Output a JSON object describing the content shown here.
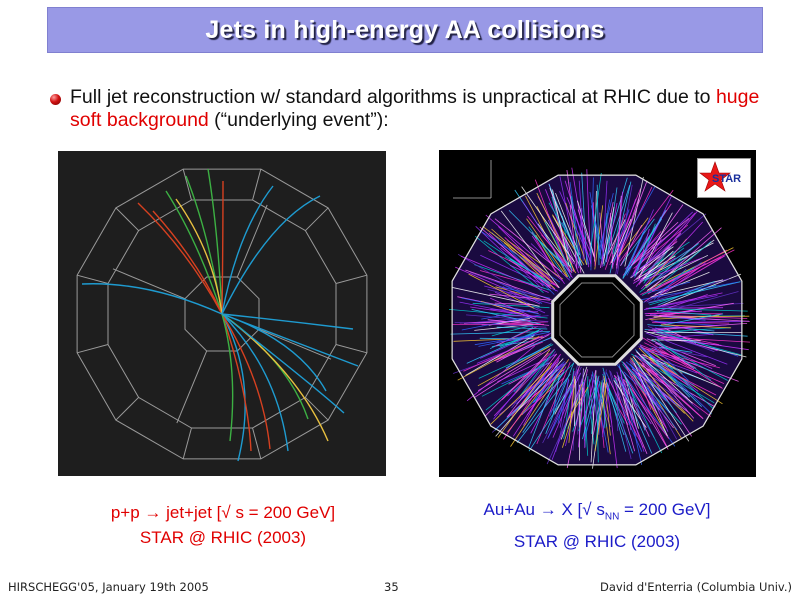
{
  "slide": {
    "title": "Jets in high-energy AA collisions",
    "bullet": {
      "part1": "Full jet reconstruction w/ standard algorithms is unpractical at RHIC due to ",
      "highlight": "huge soft background",
      "part2": " (“underlying event”):"
    },
    "left_caption": {
      "line1_a": "p+p ",
      "line1_arrow": "→",
      "line1_b": " jet+jet  [",
      "line1_sqrt": "√",
      "line1_c": " s = 200 GeV]",
      "line2": "STAR @ RHIC (2003)"
    },
    "right_caption": {
      "line1_a": "Au+Au ",
      "line1_arrow": "→",
      "line1_b": "  X [",
      "line1_sqrt": "√",
      "line1_c": " s",
      "line1_sub": "NN",
      "line1_d": " = 200 GeV]",
      "line2": "STAR @ RHIC (2003)"
    },
    "footer": {
      "left": "HIRSCHEGG'05, January 19th 2005",
      "page": "35",
      "right": "David d'Enterria (Columbia Univ.)"
    },
    "logo_text": "STAR"
  },
  "colors": {
    "title_bar": "#9999e6",
    "highlight": "#e00000",
    "caption_blue": "#1c1cc8",
    "track_blue": "#1e9bd0",
    "track_red": "#d64020",
    "track_green": "#3cb043"
  }
}
